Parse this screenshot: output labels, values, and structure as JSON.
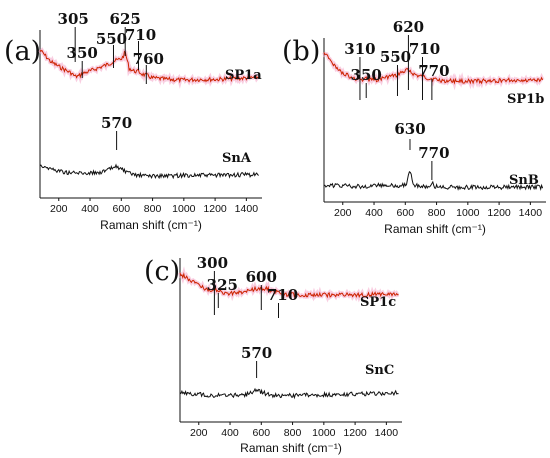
{
  "chart_data": [
    {
      "type": "line",
      "panel": "(a)",
      "xlabel": "Raman shift (cm⁻¹)",
      "xlim": [
        80,
        1500
      ],
      "xticks": [
        200,
        400,
        600,
        800,
        1000,
        1200,
        1400
      ],
      "tick_labels": [
        "200",
        "400",
        "600",
        "800",
        "1000",
        "1200",
        "1400"
      ],
      "series": [
        {
          "name": "SP1a",
          "color": "#cc2200",
          "halo": "#f4a6c8",
          "x": [
            80,
            150,
            220,
            280,
            305,
            330,
            350,
            400,
            460,
            520,
            550,
            580,
            605,
            625,
            650,
            680,
            710,
            740,
            760,
            800,
            900,
            1000,
            1100,
            1200,
            1300,
            1400,
            1480
          ],
          "y": [
            1.0,
            0.83,
            0.74,
            0.67,
            0.62,
            0.63,
            0.66,
            0.7,
            0.75,
            0.8,
            0.84,
            0.86,
            0.88,
            0.97,
            0.74,
            0.7,
            0.69,
            0.65,
            0.64,
            0.6,
            0.58,
            0.57,
            0.58,
            0.58,
            0.59,
            0.6,
            0.61
          ]
        },
        {
          "name": "SnA",
          "color": "#111111",
          "x": [
            80,
            150,
            250,
            350,
            450,
            500,
            540,
            570,
            600,
            640,
            700,
            800,
            900,
            1000,
            1200,
            1480
          ],
          "y": [
            0.36,
            0.3,
            0.25,
            0.24,
            0.25,
            0.27,
            0.31,
            0.34,
            0.3,
            0.24,
            0.21,
            0.2,
            0.2,
            0.21,
            0.21,
            0.22
          ]
        }
      ],
      "annotations": [
        "305",
        "350",
        "550",
        "625",
        "710",
        "760",
        "570"
      ],
      "annotation_x": [
        305,
        350,
        550,
        625,
        710,
        760,
        570
      ]
    },
    {
      "type": "line",
      "panel": "(b)",
      "xlabel": "Raman shift (cm⁻¹)",
      "xlim": [
        80,
        1500
      ],
      "xticks": [
        200,
        400,
        600,
        800,
        1000,
        1200,
        1400
      ],
      "tick_labels": [
        "200",
        "400",
        "600",
        "800",
        "1000",
        "1200",
        "1400"
      ],
      "series": [
        {
          "name": "SP1b",
          "color": "#cc2200",
          "halo": "#f4a6c8",
          "x": [
            80,
            110,
            150,
            200,
            260,
            310,
            330,
            350,
            400,
            460,
            520,
            550,
            580,
            600,
            620,
            640,
            680,
            710,
            740,
            770,
            820,
            900,
            1000,
            1100,
            1200,
            1300,
            1400,
            1480
          ],
          "y": [
            1.0,
            0.93,
            0.82,
            0.72,
            0.66,
            0.62,
            0.64,
            0.65,
            0.62,
            0.65,
            0.68,
            0.7,
            0.73,
            0.74,
            0.79,
            0.72,
            0.68,
            0.67,
            0.65,
            0.64,
            0.62,
            0.61,
            0.61,
            0.61,
            0.62,
            0.62,
            0.63,
            0.63
          ]
        },
        {
          "name": "SnB",
          "color": "#111111",
          "x": [
            80,
            200,
            300,
            400,
            480,
            560,
            600,
            615,
            630,
            645,
            660,
            700,
            750,
            770,
            790,
            850,
            1000,
            1200,
            1480
          ],
          "y": [
            0.18,
            0.17,
            0.16,
            0.17,
            0.18,
            0.17,
            0.18,
            0.24,
            0.4,
            0.24,
            0.18,
            0.16,
            0.16,
            0.22,
            0.16,
            0.15,
            0.15,
            0.15,
            0.15
          ]
        }
      ],
      "annotations": [
        "310",
        "350",
        "550",
        "620",
        "710",
        "770",
        "630",
        "770"
      ],
      "annotation_x": [
        310,
        350,
        550,
        620,
        710,
        770,
        630,
        770
      ]
    },
    {
      "type": "line",
      "panel": "(c)",
      "xlabel": "Raman shift (cm⁻¹)",
      "xlim": [
        80,
        1500
      ],
      "xticks": [
        200,
        400,
        600,
        800,
        1000,
        1200,
        1400
      ],
      "tick_labels": [
        "200",
        "400",
        "600",
        "800",
        "1000",
        "1200",
        "1400"
      ],
      "series": [
        {
          "name": "SP1c",
          "color": "#cc2200",
          "halo": "#f4a6c8",
          "x": [
            80,
            120,
            170,
            230,
            280,
            300,
            315,
            325,
            360,
            420,
            480,
            540,
            600,
            640,
            680,
            710,
            760,
            850,
            1000,
            1200,
            1400,
            1480
          ],
          "y": [
            1.0,
            0.95,
            0.89,
            0.81,
            0.75,
            0.79,
            0.78,
            0.76,
            0.74,
            0.73,
            0.75,
            0.78,
            0.81,
            0.79,
            0.76,
            0.74,
            0.72,
            0.71,
            0.71,
            0.71,
            0.72,
            0.72
          ]
        },
        {
          "name": "SnC",
          "color": "#111111",
          "x": [
            80,
            200,
            300,
            400,
            500,
            540,
            570,
            600,
            650,
            700,
            800,
            1000,
            1200,
            1400,
            1480
          ],
          "y": [
            0.24,
            0.22,
            0.2,
            0.2,
            0.21,
            0.25,
            0.28,
            0.25,
            0.21,
            0.2,
            0.2,
            0.21,
            0.22,
            0.23,
            0.24
          ]
        }
      ],
      "annotations": [
        "300",
        "325",
        "600",
        "710",
        "570"
      ],
      "annotation_x": [
        300,
        325,
        600,
        710,
        570
      ]
    }
  ]
}
